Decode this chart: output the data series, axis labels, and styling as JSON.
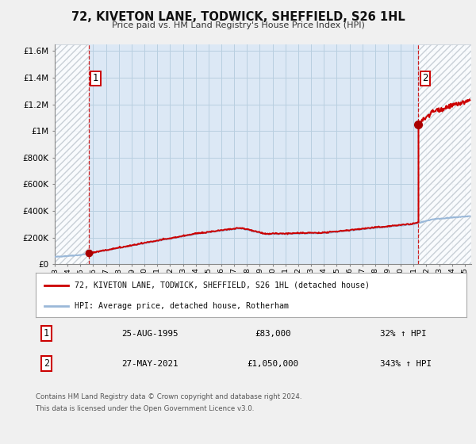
{
  "title": "72, KIVETON LANE, TODWICK, SHEFFIELD, S26 1HL",
  "subtitle": "Price paid vs. HM Land Registry's House Price Index (HPI)",
  "xlim": [
    1993.0,
    2025.5
  ],
  "ylim": [
    0,
    1650000
  ],
  "yticks": [
    0,
    200000,
    400000,
    600000,
    800000,
    1000000,
    1200000,
    1400000,
    1600000
  ],
  "ytick_labels": [
    "£0",
    "£200K",
    "£400K",
    "£600K",
    "£800K",
    "£1M",
    "£1.2M",
    "£1.4M",
    "£1.6M"
  ],
  "xticks": [
    1993,
    1994,
    1995,
    1996,
    1997,
    1998,
    1999,
    2000,
    2001,
    2002,
    2003,
    2004,
    2005,
    2006,
    2007,
    2008,
    2009,
    2010,
    2011,
    2012,
    2013,
    2014,
    2015,
    2016,
    2017,
    2018,
    2019,
    2020,
    2021,
    2022,
    2023,
    2024,
    2025
  ],
  "hpi_color": "#9ab8d8",
  "price_color": "#cc0000",
  "marker_color": "#aa0000",
  "sale1_x": 1995.646,
  "sale1_y": 83000,
  "sale2_x": 2021.383,
  "sale2_y": 1050000,
  "annotation1_label": "1",
  "annotation2_label": "2",
  "legend_line1": "72, KIVETON LANE, TODWICK, SHEFFIELD, S26 1HL (detached house)",
  "legend_line2": "HPI: Average price, detached house, Rotherham",
  "table_row1_num": "1",
  "table_row1_date": "25-AUG-1995",
  "table_row1_price": "£83,000",
  "table_row1_hpi": "32% ↑ HPI",
  "table_row2_num": "2",
  "table_row2_date": "27-MAY-2021",
  "table_row2_price": "£1,050,000",
  "table_row2_hpi": "343% ↑ HPI",
  "footnote1": "Contains HM Land Registry data © Crown copyright and database right 2024.",
  "footnote2": "This data is licensed under the Open Government Licence v3.0.",
  "background_color": "#f0f0f0",
  "plot_bg_color": "#dce8f5",
  "grid_color": "#b8cfe0",
  "hatch_color": "#c0c8d0"
}
